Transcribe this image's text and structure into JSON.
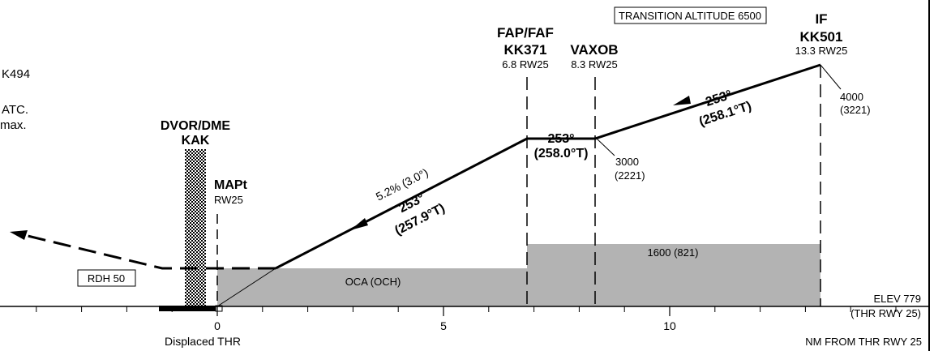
{
  "colors": {
    "ink": "#000000",
    "obstacle": "#b3b3b3",
    "paper": "#ffffff"
  },
  "transition_altitude": "TRANSITION ALTITUDE 6500",
  "left_notes": {
    "line1": "K494",
    "line2": "ATC.",
    "line3": "max."
  },
  "navaid": {
    "line1": "DVOR/DME",
    "line2": "KAK"
  },
  "fixes": {
    "if": {
      "role": "IF",
      "name": "KK501",
      "distance": "13.3 RW25",
      "altitude": "4000",
      "height": "(3221)",
      "nm": 13.3
    },
    "faf": {
      "role": "FAP/FAF",
      "name": "KK371",
      "distance": "6.8 RW25",
      "nm": 6.8
    },
    "vaxob": {
      "name": "VAXOB",
      "distance": "8.3 RW25",
      "altitude": "3000",
      "height": "(2221)",
      "nm": 8.3
    },
    "mapt": {
      "name": "MAPt",
      "distance": "RW25",
      "nm": 0
    }
  },
  "segments": {
    "initial": {
      "course": "253°",
      "true_course": "(258.1°T)"
    },
    "intermediate": {
      "course": "253°",
      "true_course": "(258.0°T)"
    },
    "final": {
      "gradient": "5.2% (3.0°)",
      "course": "253°",
      "true_course": "(257.9°T)"
    }
  },
  "rdh": "RDH 50",
  "oca": "OCA (OCH)",
  "intermediate_oca": "1600 (821)",
  "elevation": {
    "elev": "ELEV 779",
    "ref": "(THR RWY 25)"
  },
  "axis": {
    "unit_label": "NM FROM THR RWY 25",
    "threshold_label": "Displaced THR",
    "ticks": [
      {
        "value": 0,
        "label": "0"
      },
      {
        "value": 5,
        "label": "5"
      },
      {
        "value": 10,
        "label": "10"
      }
    ]
  }
}
